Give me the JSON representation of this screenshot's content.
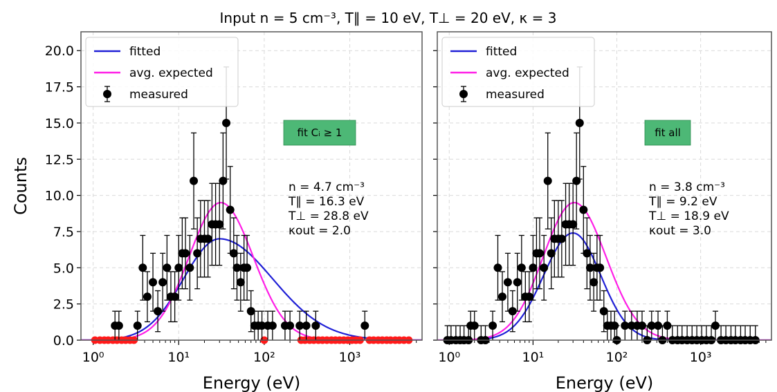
{
  "figure": {
    "title": "Input n = 5 cm⁻³, T∥ = 10 eV, T⊥ = 20 eV, κ = 3"
  },
  "chart_data": [
    {
      "type": "scatter",
      "title": "",
      "xlabel": "Energy (eV)",
      "ylabel": "Counts",
      "xscale": "log",
      "xlim": [
        0.72,
        7000
      ],
      "ylim": [
        0,
        21.3
      ],
      "grid": true,
      "legend_position": "top-left",
      "x_ticks": [
        "10⁰",
        "10¹",
        "10²",
        "10³"
      ],
      "y_ticks": [
        "0.0",
        "2.5",
        "5.0",
        "7.5",
        "10.0",
        "12.5",
        "15.0",
        "17.5",
        "20.0"
      ],
      "box_label": "fit Cᵢ ≥ 1",
      "box_color": "#4db876",
      "annotation": [
        "n = 4.7 cm⁻³",
        "T∥ = 16.3 eV",
        "T⊥ = 28.8 eV",
        "κout = 2.0"
      ],
      "fitted_params": {
        "n": 4.7,
        "T_par": 16.3,
        "T_perp": 28.8,
        "kappa": 2.0,
        "amplitude": 7.0,
        "peak_energy": 30,
        "width_lo": 0.42,
        "width_hi": 0.62
      },
      "expected_params": {
        "amplitude": 9.5,
        "peak_energy": 31,
        "width_lo": 0.37,
        "width_hi": 0.38
      },
      "series": [
        {
          "name": "fitted",
          "color": "#1f1fd6"
        },
        {
          "name": "avg. expected",
          "color": "#ff1ee6"
        },
        {
          "name": "measured",
          "color": "#000000",
          "x": [
            1.8,
            2.0,
            3.3,
            3.8,
            4.3,
            5.0,
            5.7,
            6.5,
            7.3,
            8.1,
            9.0,
            10.0,
            11.0,
            12.0,
            13.5,
            15.0,
            16.5,
            18.0,
            20.0,
            22.0,
            24.5,
            27.0,
            30.0,
            33.0,
            36.0,
            40.0,
            44.0,
            48.0,
            53.0,
            58.0,
            63.0,
            70.0,
            77.0,
            85.0,
            94.0,
            110.0,
            125.0,
            175.0,
            200.0,
            260.0,
            310.0,
            400.0,
            1500.0
          ],
          "y": [
            1,
            1,
            1,
            5,
            3,
            4,
            2,
            4,
            5,
            3,
            3,
            5,
            6,
            6,
            5,
            11,
            6,
            7,
            7,
            7,
            8,
            8,
            8,
            11,
            15,
            9,
            6,
            5,
            4,
            5,
            5,
            2,
            1,
            1,
            1,
            1,
            1,
            1,
            1,
            1,
            1,
            1,
            1
          ]
        },
        {
          "name": "zero counts",
          "color": "#ff1a1a",
          "x": [
            1.05,
            1.2,
            1.35,
            1.5,
            1.7,
            1.9,
            2.15,
            2.4,
            2.7,
            3.0,
            100.0,
            270.0,
            300.0,
            340.0,
            380.0,
            430.0,
            480.0,
            540.0,
            610.0,
            680.0,
            760.0,
            850.0,
            950.0,
            1060.0,
            1180.0,
            1320.0,
            1700.0,
            1900.0,
            2150.0,
            2400.0,
            2700.0,
            3000.0,
            3400.0,
            3800.0,
            4300.0,
            4900.0
          ],
          "y": [
            0,
            0,
            0,
            0,
            0,
            0,
            0,
            0,
            0,
            0,
            0,
            0,
            0,
            0,
            0,
            0,
            0,
            0,
            0,
            0,
            0,
            0,
            0,
            0,
            0,
            0,
            0,
            0,
            0,
            0,
            0,
            0,
            0,
            0,
            0,
            0
          ]
        }
      ]
    },
    {
      "type": "scatter",
      "title": "",
      "xlabel": "Energy (eV)",
      "ylabel": "",
      "xscale": "log",
      "xlim": [
        0.72,
        7000
      ],
      "ylim": [
        0,
        21.3
      ],
      "grid": true,
      "legend_position": "top-left",
      "x_ticks": [
        "10⁰",
        "10¹",
        "10²",
        "10³"
      ],
      "y_ticks": [],
      "box_label": "fit all",
      "box_color": "#4db876",
      "annotation": [
        "n = 3.8 cm⁻³",
        "T∥ = 9.2 eV",
        "T⊥ = 18.9 eV",
        "κout = 3.0"
      ],
      "fitted_params": {
        "n": 3.8,
        "T_par": 9.2,
        "T_perp": 18.9,
        "kappa": 3.0,
        "amplitude": 7.4,
        "peak_energy": 30,
        "width_lo": 0.35,
        "width_hi": 0.33
      },
      "expected_params": {
        "amplitude": 9.5,
        "peak_energy": 31,
        "width_lo": 0.37,
        "width_hi": 0.38
      },
      "series": [
        {
          "name": "fitted",
          "color": "#1f1fd6"
        },
        {
          "name": "avg. expected",
          "color": "#ff1ee6"
        },
        {
          "name": "measured",
          "color": "#000000",
          "x": [
            0.95,
            1.05,
            1.2,
            1.35,
            1.5,
            1.7,
            1.8,
            2.0,
            2.4,
            2.7,
            3.3,
            3.8,
            4.3,
            5.0,
            5.7,
            6.5,
            7.3,
            8.1,
            9.0,
            10.0,
            11.0,
            12.0,
            13.5,
            15.0,
            16.5,
            18.0,
            20.0,
            22.0,
            24.5,
            27.0,
            30.0,
            33.0,
            36.0,
            40.0,
            44.0,
            48.0,
            53.0,
            58.0,
            63.0,
            70.0,
            77.0,
            85.0,
            94.0,
            100.0,
            125.0,
            150.0,
            175.0,
            200.0,
            230.0,
            260.0,
            310.0,
            350.0,
            400.0,
            460.0,
            530.0,
            600.0,
            690.0,
            790.0,
            900.0,
            1030.0,
            1170.0,
            1340.0,
            1500.0,
            1750.0,
            2000.0,
            2300.0,
            2600.0,
            3000.0,
            3400.0,
            3900.0,
            4500.0
          ],
          "y": [
            0,
            0,
            0,
            0,
            0,
            0,
            1,
            1,
            0,
            0,
            1,
            5,
            3,
            4,
            2,
            4,
            5,
            3,
            3,
            5,
            6,
            6,
            5,
            11,
            6,
            7,
            7,
            7,
            8,
            8,
            8,
            11,
            15,
            9,
            6,
            5,
            4,
            5,
            5,
            2,
            1,
            1,
            1,
            0,
            1,
            1,
            1,
            1,
            0,
            1,
            1,
            0,
            1,
            0,
            0,
            0,
            0,
            0,
            0,
            0,
            0,
            0,
            1,
            0,
            0,
            0,
            0,
            0,
            0,
            0,
            0
          ]
        }
      ]
    }
  ]
}
